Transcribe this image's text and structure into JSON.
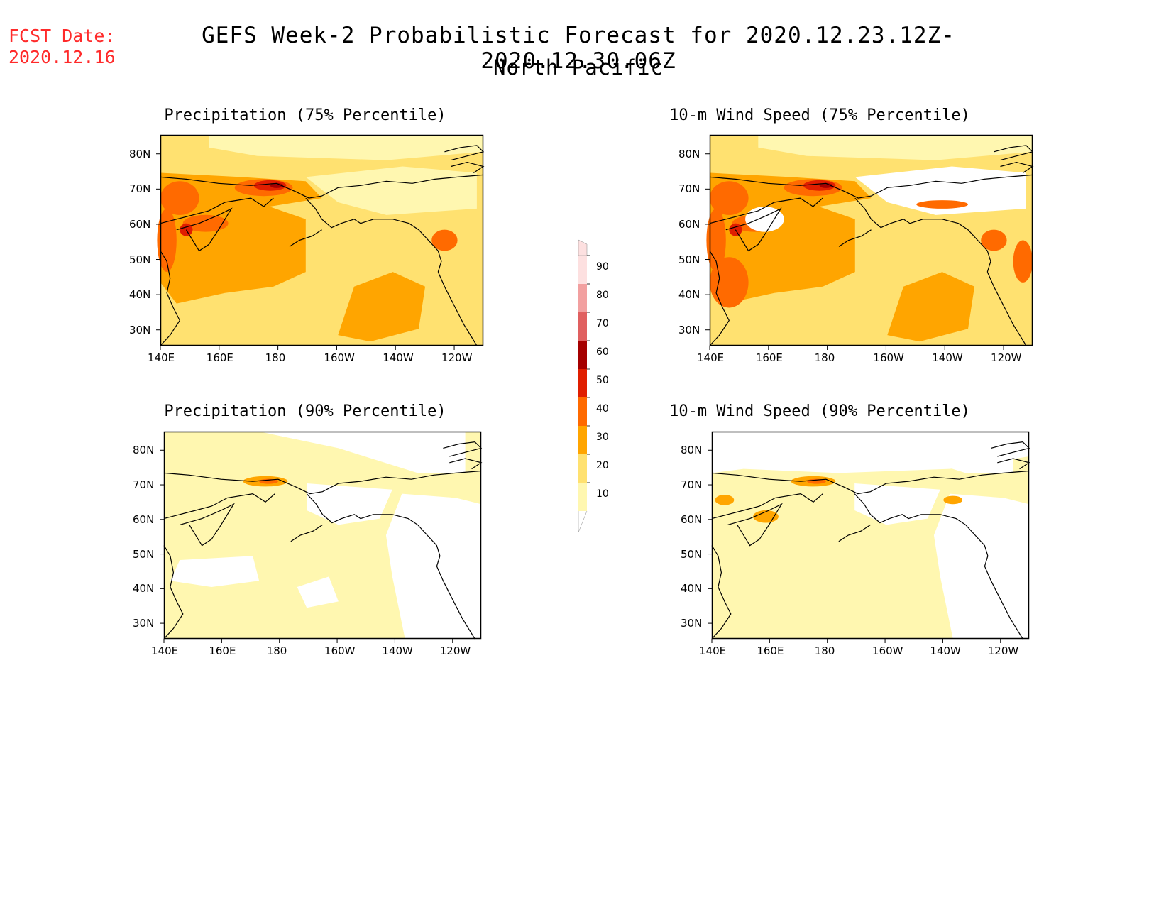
{
  "header": {
    "fcst_label": "FCST Date:",
    "fcst_date": "2020.12.16",
    "title": "GEFS Week-2 Probabilistic Forecast for 2020.12.23.12Z-2020.12.30.06Z",
    "region": "North Pacific"
  },
  "axes": {
    "lat_labels": [
      "80N",
      "70N",
      "60N",
      "50N",
      "40N",
      "30N"
    ],
    "lon_labels": [
      "140E",
      "160E",
      "180",
      "160W",
      "140W",
      "120W"
    ]
  },
  "panels": [
    {
      "title": "Precipitation (75% Percentile)"
    },
    {
      "title": "10-m Wind Speed (75% Percentile)"
    },
    {
      "title": "Precipitation (90% Percentile)"
    },
    {
      "title": "10-m Wind Speed (90% Percentile)"
    }
  ],
  "colorbar": {
    "levels": [
      "90",
      "80",
      "70",
      "60",
      "50",
      "40",
      "30",
      "20",
      "10"
    ],
    "colors": [
      "#fde0e0",
      "#f2a0a0",
      "#e06060",
      "#a50000",
      "#e01e00",
      "#ff6a00",
      "#ffa500",
      "#ffe170",
      "#fff7b0"
    ]
  },
  "palette": {
    "fill_high": "#ffa500",
    "fill_mid": "#ffe170",
    "fill_low": "#fff7b0",
    "fill_orange": "#ff6a00",
    "fill_red": "#e01e00",
    "fill_darkred": "#a50000",
    "fill_pink": "#f2a0a0",
    "coast": "#000000"
  }
}
